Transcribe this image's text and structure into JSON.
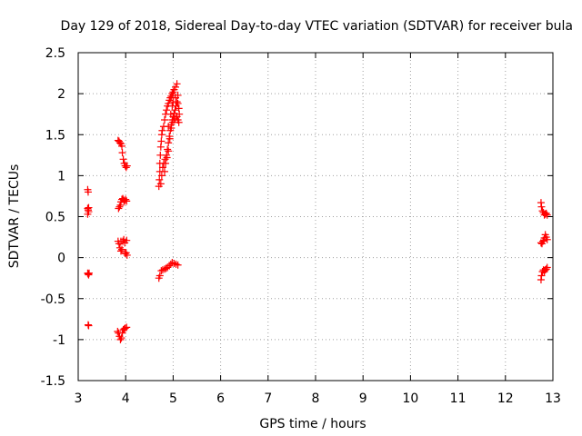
{
  "chart_data": {
    "type": "scatter",
    "title": "Day 129 of 2018, Sidereal Day-to-day VTEC variation (SDTVAR) for receiver bula",
    "xlabel": "GPS time / hours",
    "ylabel": "SDTVAR / TECUs",
    "xlim": [
      3,
      13
    ],
    "ylim": [
      -1.5,
      2.5
    ],
    "xticks": [
      3,
      4,
      5,
      6,
      7,
      8,
      9,
      10,
      11,
      12,
      13
    ],
    "yticks": [
      -1.5,
      -1,
      -0.5,
      0,
      0.5,
      1,
      1.5,
      2,
      2.5
    ],
    "xtick_labels": [
      "3",
      "4",
      "5",
      "6",
      "7",
      "8",
      "9",
      "10",
      "11",
      "12",
      "13"
    ],
    "ytick_labels": [
      "-1.5",
      "-1",
      "-0.5",
      "0",
      "0.5",
      "1",
      "1.5",
      "2",
      "2.5"
    ],
    "grid": true,
    "grid_style": "dotted",
    "marker": "+",
    "marker_color": "#ff0000",
    "series": [
      {
        "name": "SDTVAR",
        "points": [
          [
            3.2,
            0.83
          ],
          [
            3.21,
            0.8
          ],
          [
            3.2,
            0.6
          ],
          [
            3.21,
            0.58
          ],
          [
            3.22,
            0.56
          ],
          [
            3.2,
            0.53
          ],
          [
            3.22,
            0.61
          ],
          [
            3.2,
            -0.19
          ],
          [
            3.21,
            -0.2
          ],
          [
            3.22,
            -0.21
          ],
          [
            3.23,
            -0.19
          ],
          [
            3.21,
            -0.82
          ],
          [
            3.22,
            -0.83
          ],
          [
            3.84,
            1.43
          ],
          [
            3.86,
            1.42
          ],
          [
            3.88,
            1.4
          ],
          [
            3.9,
            1.39
          ],
          [
            3.92,
            1.36
          ],
          [
            3.93,
            1.28
          ],
          [
            3.95,
            1.2
          ],
          [
            3.97,
            1.15
          ],
          [
            3.99,
            1.12
          ],
          [
            4.01,
            1.1
          ],
          [
            4.03,
            1.12
          ],
          [
            3.85,
            0.6
          ],
          [
            3.87,
            0.62
          ],
          [
            3.89,
            0.64
          ],
          [
            3.9,
            0.68
          ],
          [
            3.92,
            0.71
          ],
          [
            3.94,
            0.72
          ],
          [
            3.96,
            0.7
          ],
          [
            3.98,
            0.69
          ],
          [
            4.0,
            0.71
          ],
          [
            4.02,
            0.69
          ],
          [
            3.84,
            0.2
          ],
          [
            3.86,
            0.17
          ],
          [
            3.88,
            0.12
          ],
          [
            3.9,
            0.08
          ],
          [
            3.92,
            0.1
          ],
          [
            3.94,
            0.2
          ],
          [
            3.96,
            0.22
          ],
          [
            3.98,
            0.18
          ],
          [
            3.99,
            0.05
          ],
          [
            4.01,
            0.06
          ],
          [
            4.03,
            0.03
          ],
          [
            3.9,
            0.2
          ],
          [
            4.02,
            0.21
          ],
          [
            3.83,
            -0.9
          ],
          [
            3.85,
            -0.92
          ],
          [
            3.87,
            -0.96
          ],
          [
            3.89,
            -1.0
          ],
          [
            3.91,
            -0.98
          ],
          [
            3.93,
            -0.92
          ],
          [
            3.95,
            -0.88
          ],
          [
            3.97,
            -0.87
          ],
          [
            3.99,
            -0.86
          ],
          [
            4.02,
            -0.85
          ],
          [
            4.7,
            -0.25
          ],
          [
            4.72,
            -0.22
          ],
          [
            4.75,
            -0.16
          ],
          [
            4.78,
            -0.15
          ],
          [
            4.82,
            -0.14
          ],
          [
            4.85,
            -0.13
          ],
          [
            4.88,
            -0.12
          ],
          [
            4.92,
            -0.1
          ],
          [
            4.95,
            -0.08
          ],
          [
            4.98,
            -0.06
          ],
          [
            5.02,
            -0.07
          ],
          [
            5.06,
            -0.08
          ],
          [
            5.1,
            -0.09
          ],
          [
            4.7,
            0.87
          ],
          [
            4.71,
            0.95
          ],
          [
            4.72,
            1.05
          ],
          [
            4.72,
            1.15
          ],
          [
            4.73,
            1.25
          ],
          [
            4.74,
            1.35
          ],
          [
            4.75,
            1.42
          ],
          [
            4.76,
            1.5
          ],
          [
            4.77,
            1.55
          ],
          [
            4.8,
            1.6
          ],
          [
            4.82,
            1.68
          ],
          [
            4.84,
            1.75
          ],
          [
            4.86,
            1.8
          ],
          [
            4.88,
            1.85
          ],
          [
            4.9,
            1.88
          ],
          [
            4.92,
            1.92
          ],
          [
            4.94,
            1.95
          ],
          [
            4.96,
            1.97
          ],
          [
            4.98,
            2.0
          ],
          [
            5.0,
            2.02
          ],
          [
            5.02,
            2.05
          ],
          [
            5.05,
            2.08
          ],
          [
            5.08,
            2.12
          ],
          [
            4.74,
            0.9
          ],
          [
            4.76,
            1.0
          ],
          [
            4.78,
            1.1
          ],
          [
            4.8,
            1.15
          ],
          [
            4.83,
            1.2
          ],
          [
            4.86,
            1.25
          ],
          [
            4.88,
            1.32
          ],
          [
            4.9,
            1.4
          ],
          [
            4.92,
            1.48
          ],
          [
            4.94,
            1.55
          ],
          [
            4.96,
            1.62
          ],
          [
            4.98,
            1.68
          ],
          [
            5.0,
            1.72
          ],
          [
            5.02,
            1.76
          ],
          [
            5.04,
            1.8
          ],
          [
            5.06,
            1.85
          ],
          [
            5.08,
            1.9
          ],
          [
            5.1,
            1.88
          ],
          [
            5.12,
            1.82
          ],
          [
            5.13,
            1.75
          ],
          [
            4.82,
            1.05
          ],
          [
            4.84,
            1.15
          ],
          [
            4.87,
            1.22
          ],
          [
            4.9,
            1.3
          ],
          [
            4.93,
            1.45
          ],
          [
            4.96,
            1.58
          ],
          [
            4.99,
            1.65
          ],
          [
            5.02,
            1.68
          ],
          [
            5.05,
            1.7
          ],
          [
            5.08,
            1.72
          ],
          [
            5.1,
            1.68
          ],
          [
            5.12,
            1.65
          ],
          [
            5.0,
            1.9
          ],
          [
            4.98,
            1.85
          ],
          [
            5.05,
            1.95
          ],
          [
            5.1,
            1.98
          ],
          [
            4.95,
            1.75
          ],
          [
            4.9,
            1.6
          ],
          [
            12.75,
            0.67
          ],
          [
            12.76,
            0.62
          ],
          [
            12.78,
            0.57
          ],
          [
            12.8,
            0.55
          ],
          [
            12.82,
            0.52
          ],
          [
            12.84,
            0.53
          ],
          [
            12.86,
            0.54
          ],
          [
            12.88,
            0.52
          ],
          [
            12.75,
            0.18
          ],
          [
            12.77,
            0.17
          ],
          [
            12.79,
            0.2
          ],
          [
            12.81,
            0.21
          ],
          [
            12.82,
            0.24
          ],
          [
            12.84,
            0.28
          ],
          [
            12.86,
            0.25
          ],
          [
            12.88,
            0.22
          ],
          [
            12.75,
            -0.27
          ],
          [
            12.76,
            -0.22
          ],
          [
            12.78,
            -0.17
          ],
          [
            12.8,
            -0.15
          ],
          [
            12.82,
            -0.17
          ],
          [
            12.84,
            -0.15
          ],
          [
            12.86,
            -0.14
          ],
          [
            12.88,
            -0.12
          ]
        ]
      }
    ]
  }
}
